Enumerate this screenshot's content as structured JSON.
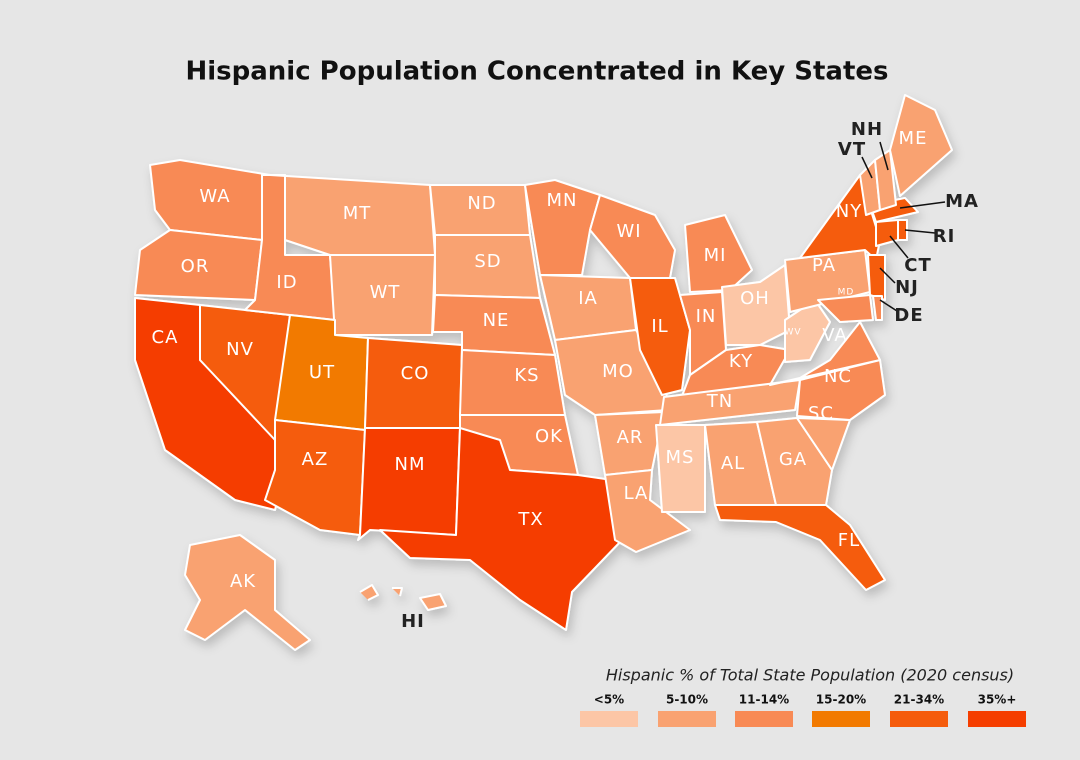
{
  "title": "Hispanic Population Concentrated in Key States",
  "legend_title": "Hispanic % of Total State Population (2020 census)",
  "legend": [
    {
      "label": "<5%",
      "color": "#fcc6a6"
    },
    {
      "label": "5-10%",
      "color": "#f9a271"
    },
    {
      "label": "11-14%",
      "color": "#f88a55"
    },
    {
      "label": "15-20%",
      "color": "#f27a00"
    },
    {
      "label": "21-34%",
      "color": "#f55c0c"
    },
    {
      "label": "35%+",
      "color": "#f53e00"
    }
  ],
  "states": [
    {
      "label": "WA",
      "category": "11-14%"
    },
    {
      "label": "OR",
      "category": "11-14%"
    },
    {
      "label": "CA",
      "category": "35%+"
    },
    {
      "label": "NV",
      "category": "21-34%"
    },
    {
      "label": "ID",
      "category": "11-14%"
    },
    {
      "label": "MT",
      "category": "5-10%"
    },
    {
      "label": "WT",
      "category": "5-10%"
    },
    {
      "label": "UT",
      "category": "15-20%"
    },
    {
      "label": "AZ",
      "category": "21-34%"
    },
    {
      "label": "CO",
      "category": "21-34%"
    },
    {
      "label": "NM",
      "category": "35%+"
    },
    {
      "label": "ND",
      "category": "5-10%"
    },
    {
      "label": "SD",
      "category": "5-10%"
    },
    {
      "label": "NE",
      "category": "11-14%"
    },
    {
      "label": "KS",
      "category": "11-14%"
    },
    {
      "label": "OK",
      "category": "11-14%"
    },
    {
      "label": "TX",
      "category": "35%+"
    },
    {
      "label": "MN",
      "category": "11-14%"
    },
    {
      "label": "IA",
      "category": "5-10%"
    },
    {
      "label": "MO",
      "category": "5-10%"
    },
    {
      "label": "AR",
      "category": "5-10%"
    },
    {
      "label": "LA",
      "category": "5-10%"
    },
    {
      "label": "WI",
      "category": "11-14%"
    },
    {
      "label": "IL",
      "category": "21-34%"
    },
    {
      "label": "MI",
      "category": "11-14%"
    },
    {
      "label": "IN",
      "category": "11-14%"
    },
    {
      "label": "OH",
      "category": "<5%"
    },
    {
      "label": "KY",
      "category": "11-14%"
    },
    {
      "label": "TN",
      "category": "5-10%"
    },
    {
      "label": "MS",
      "category": "<5%"
    },
    {
      "label": "AL",
      "category": "5-10%"
    },
    {
      "label": "GA",
      "category": "5-10%"
    },
    {
      "label": "FL",
      "category": "21-34%"
    },
    {
      "label": "SC",
      "category": "5-10%"
    },
    {
      "label": "NC",
      "category": "11-14%"
    },
    {
      "label": "VA",
      "category": "11-14%"
    },
    {
      "label": "WV",
      "category": "<5%"
    },
    {
      "label": "PA",
      "category": "5-10%"
    },
    {
      "label": "NY",
      "category": "21-34%"
    },
    {
      "label": "NJ",
      "category": "21-34%"
    },
    {
      "label": "DE",
      "category": "11-14%"
    },
    {
      "label": "MD",
      "category": "11-14%"
    },
    {
      "label": "CT",
      "category": "21-34%"
    },
    {
      "label": "RI",
      "category": "21-34%"
    },
    {
      "label": "MA",
      "category": "21-34%"
    },
    {
      "label": "VT",
      "category": "5-10%"
    },
    {
      "label": "NH",
      "category": "5-10%"
    },
    {
      "label": "ME",
      "category": "5-10%"
    },
    {
      "label": "AK",
      "category": "5-10%"
    },
    {
      "label": "HI",
      "category": "5-10%"
    }
  ]
}
